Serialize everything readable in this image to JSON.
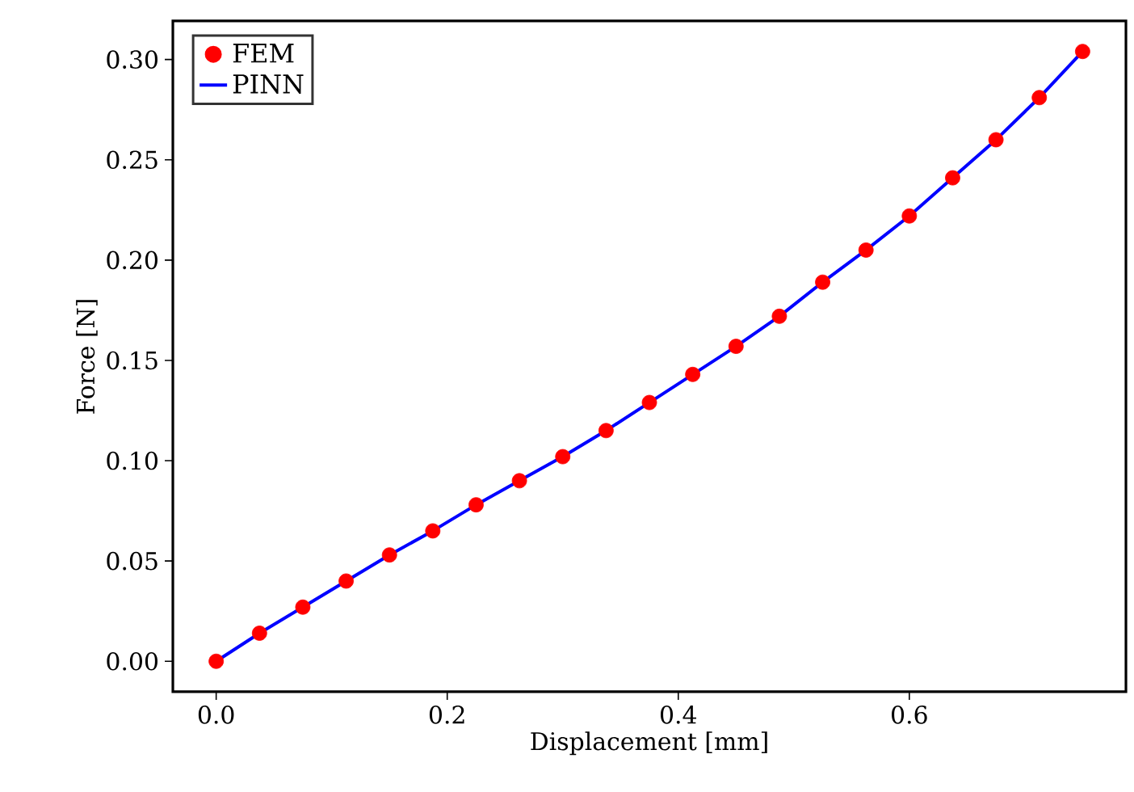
{
  "chart_data": {
    "type": "line",
    "xlabel": "Displacement [mm]",
    "ylabel": "Force [N]",
    "x": [
      0,
      0.0375,
      0.075,
      0.1125,
      0.15,
      0.1875,
      0.225,
      0.2625,
      0.3,
      0.3375,
      0.375,
      0.4125,
      0.45,
      0.4875,
      0.525,
      0.5625,
      0.6,
      0.6375,
      0.675,
      0.7125,
      0.75
    ],
    "series": [
      {
        "name": "FEM",
        "type": "scatter",
        "marker": "circle",
        "color": "#ff0000",
        "values": [
          0,
          0.014,
          0.027,
          0.04,
          0.053,
          0.065,
          0.078,
          0.09,
          0.102,
          0.115,
          0.129,
          0.143,
          0.157,
          0.172,
          0.189,
          0.205,
          0.222,
          0.241,
          0.26,
          0.281,
          0.304
        ]
      },
      {
        "name": "PINN",
        "marker": "none",
        "line_style": "solid",
        "color": "#0000ff",
        "values": [
          0,
          0.014,
          0.027,
          0.04,
          0.053,
          0.065,
          0.078,
          0.09,
          0.102,
          0.115,
          0.129,
          0.143,
          0.157,
          0.172,
          0.189,
          0.205,
          0.222,
          0.241,
          0.26,
          0.281,
          0.304
        ]
      }
    ],
    "xlim": [
      -0.0375,
      0.7875
    ],
    "ylim": [
      -0.0152,
      0.3192
    ],
    "xticks": [
      {
        "value": 0,
        "label": "0.0"
      },
      {
        "value": 0.2,
        "label": "0.2"
      },
      {
        "value": 0.4,
        "label": "0.4"
      },
      {
        "value": 0.6,
        "label": "0.6"
      }
    ],
    "yticks": [
      {
        "value": 0,
        "label": "0.00"
      },
      {
        "value": 0.05,
        "label": "0.05"
      },
      {
        "value": 0.1,
        "label": "0.10"
      },
      {
        "value": 0.15,
        "label": "0.15"
      },
      {
        "value": 0.2,
        "label": "0.20"
      },
      {
        "value": 0.25,
        "label": "0.25"
      },
      {
        "value": 0.3,
        "label": "0.30"
      }
    ],
    "legend": "top left"
  }
}
